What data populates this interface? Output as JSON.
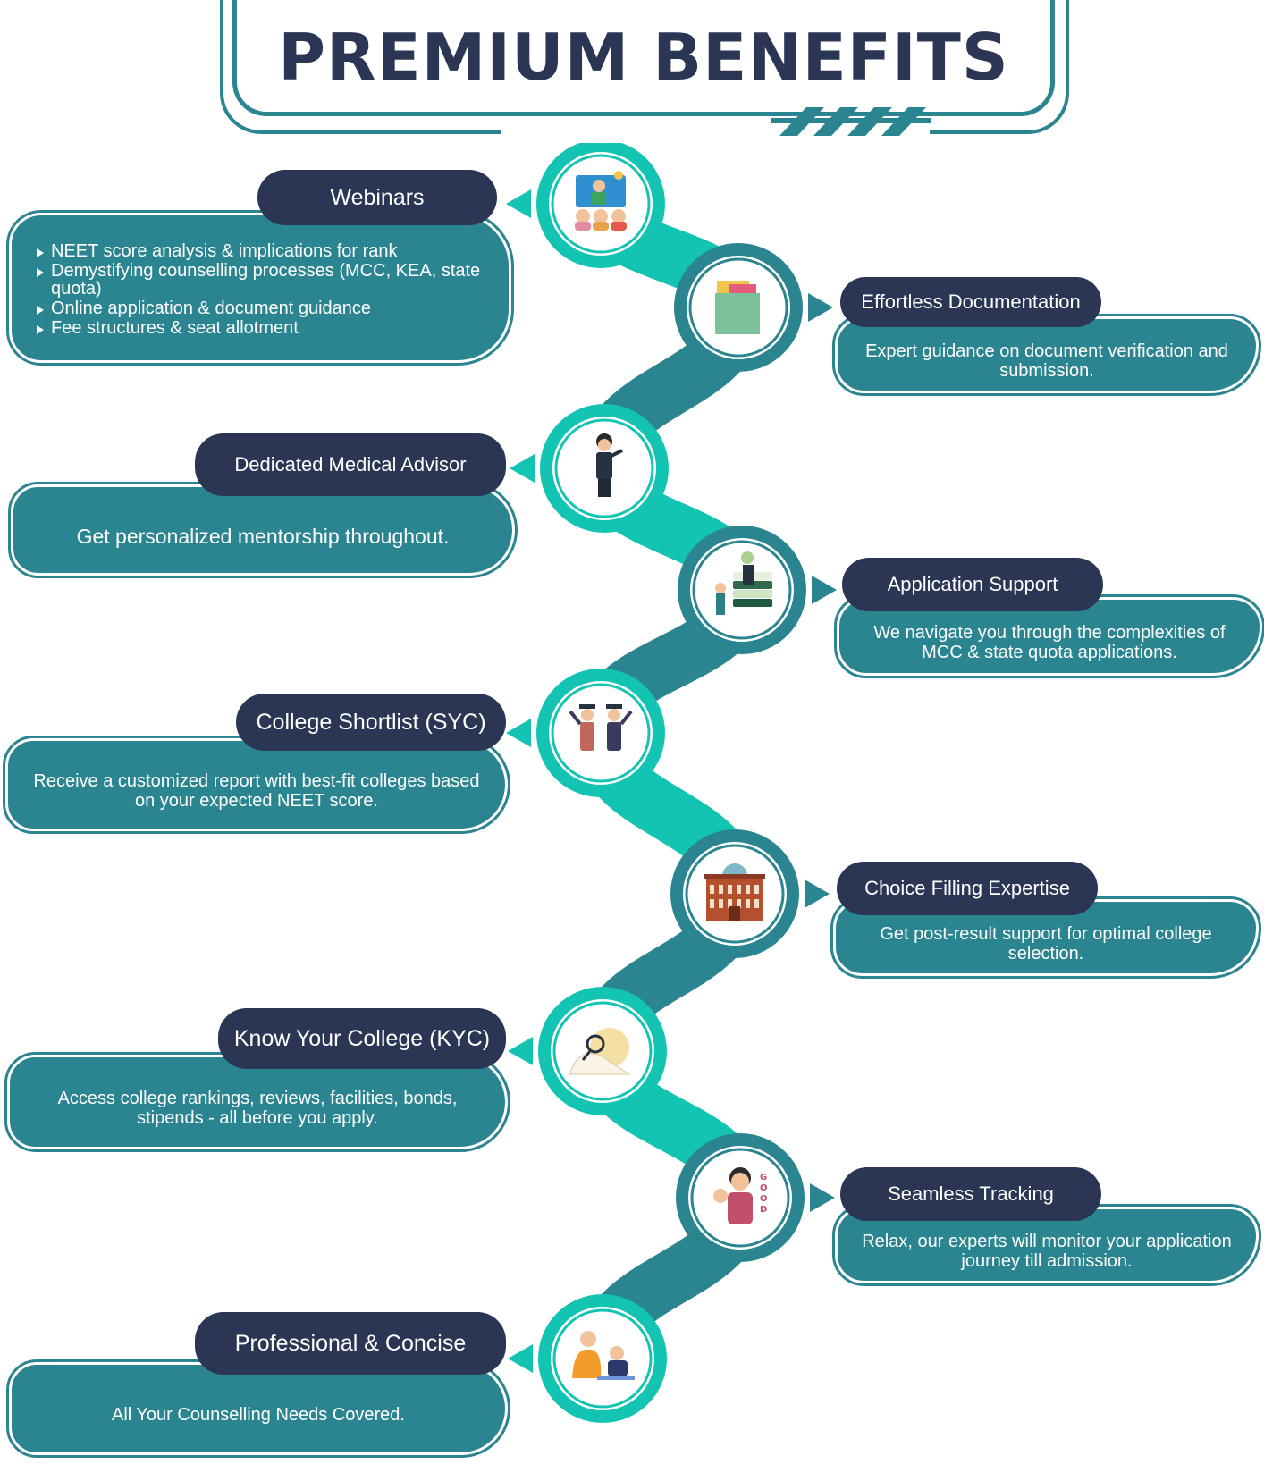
{
  "title": "PREMIUM BENEFITS",
  "colors": {
    "teal": "#2a8590",
    "aqua": "#13c4b3",
    "navy": "#2a3654"
  },
  "benefits": [
    {
      "title": "Webinars",
      "icon": "webinar-presenter-icon",
      "items": [
        "NEET score analysis & implications for rank",
        "Demystifying counselling processes (MCC, KEA, state quota)",
        "Online application & document guidance",
        "Fee structures & seat allotment"
      ]
    },
    {
      "title": "Effortless Documentation",
      "icon": "document-folder-icon",
      "desc": "Expert guidance on document verification and submission."
    },
    {
      "title": "Dedicated Medical Advisor",
      "icon": "advisor-person-icon",
      "desc": "Get personalized mentorship throughout."
    },
    {
      "title": "Application Support",
      "icon": "helping-hand-books-icon",
      "desc": "We navigate you through the complexities of MCC & state quota applications."
    },
    {
      "title": "College Shortlist (SYC)",
      "icon": "graduates-icon",
      "desc": "Receive a customized report with best-fit colleges based on your expected NEET score."
    },
    {
      "title": "Choice Filling Expertise",
      "icon": "college-building-icon",
      "desc": "Get post-result support for optimal college selection."
    },
    {
      "title": "Know Your College (KYC)",
      "icon": "magnifier-person-icon",
      "desc": "Access college rankings, reviews, facilities, bonds, stipends - all before you apply."
    },
    {
      "title": "Seamless Tracking",
      "icon": "thumbs-up-good-icon",
      "desc": "Relax, our experts will monitor your application journey till admission."
    },
    {
      "title": "Professional & Concise",
      "icon": "mentor-student-icon",
      "desc": "All Your Counselling Needs Covered."
    }
  ]
}
